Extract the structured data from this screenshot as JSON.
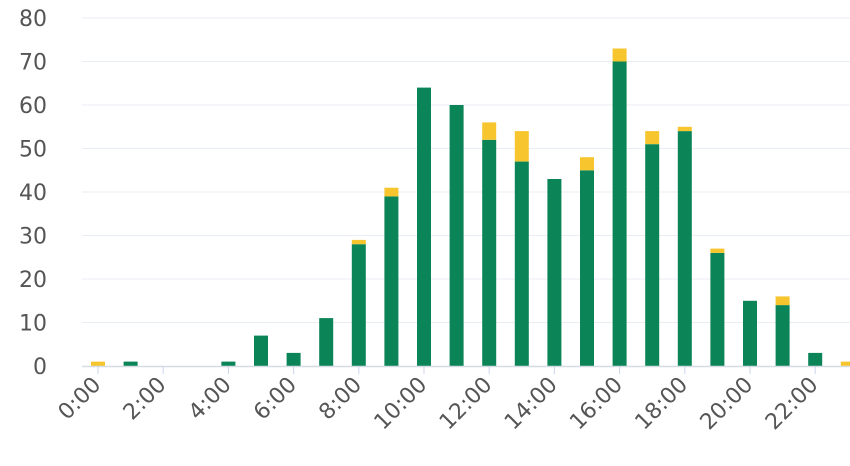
{
  "chart_data": {
    "type": "bar",
    "stacked": true,
    "categories": [
      "0:00",
      "1:00",
      "2:00",
      "3:00",
      "4:00",
      "5:00",
      "6:00",
      "7:00",
      "8:00",
      "9:00",
      "10:00",
      "11:00",
      "12:00",
      "13:00",
      "14:00",
      "15:00",
      "16:00",
      "17:00",
      "18:00",
      "19:00",
      "20:00",
      "21:00",
      "22:00",
      "23:00"
    ],
    "x_tick_labels": [
      "0:00",
      "2:00",
      "4:00",
      "6:00",
      "8:00",
      "10:00",
      "12:00",
      "14:00",
      "16:00",
      "18:00",
      "20:00",
      "22:00"
    ],
    "y_ticks": [
      0,
      10,
      20,
      30,
      40,
      50,
      60,
      70,
      80
    ],
    "ylim": [
      0,
      80
    ],
    "grid": true,
    "legend": "none",
    "title": "",
    "xlabel": "",
    "ylabel": "",
    "series": [
      {
        "color": "#0b8457",
        "values": [
          0,
          1,
          0,
          0,
          1,
          7,
          3,
          11,
          28,
          39,
          64,
          60,
          52,
          47,
          43,
          45,
          70,
          51,
          54,
          26,
          15,
          14,
          3,
          0
        ]
      },
      {
        "color": "#f7c62f",
        "values": [
          1,
          0,
          0,
          0,
          0,
          0,
          0,
          0,
          1,
          2,
          0,
          0,
          4,
          7,
          0,
          3,
          3,
          3,
          1,
          1,
          0,
          2,
          0,
          1
        ]
      }
    ]
  }
}
